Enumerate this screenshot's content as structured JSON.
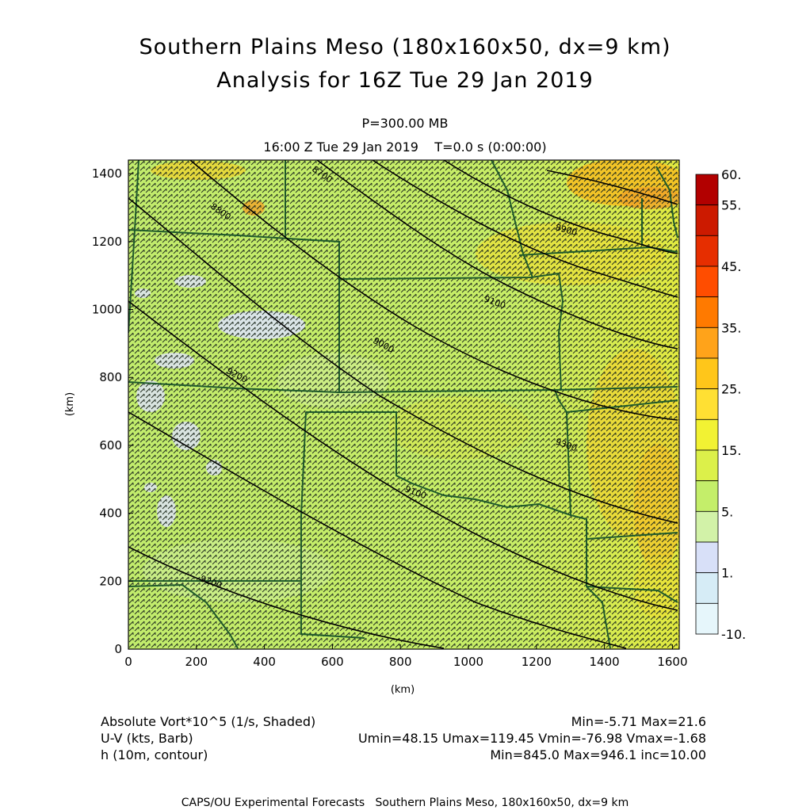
{
  "header": {
    "title_line1": "Southern Plains Meso (180x160x50, dx=9 km)",
    "title_line2": "Analysis for 16Z Tue 29 Jan 2019",
    "level": "P=300.00 MB",
    "valid_time": "16:00 Z Tue 29 Jan 2019    T=0.0 s (0:00:00)"
  },
  "axes": {
    "x_label": "(km)",
    "y_label": "(km)",
    "x_ticks": [
      "0",
      "200",
      "400",
      "600",
      "800",
      "1000",
      "1200",
      "1400",
      "1600"
    ],
    "y_ticks": [
      "0",
      "200",
      "400",
      "600",
      "800",
      "1000",
      "1200",
      "1400"
    ],
    "x_range": [
      0,
      1620
    ],
    "y_range": [
      0,
      1440
    ]
  },
  "colorbar": {
    "labels": [
      "60.",
      "55.",
      "45.",
      "35.",
      "25.",
      "15.",
      "5.",
      "1.",
      "-10."
    ],
    "colors": [
      "#b20000",
      "#cc1a00",
      "#e62e00",
      "#ff4d00",
      "#ff7a00",
      "#ffa31a",
      "#ffc61a",
      "#ffe033",
      "#f2f233",
      "#dcf04a",
      "#c4ee6a",
      "#d2f2a8",
      "#d8e0f8",
      "#d6ecf6",
      "#e6f6fb"
    ]
  },
  "contours": {
    "labels": [
      "9200",
      "9100",
      "9300",
      "9200",
      "9000",
      "9100",
      "8900",
      "8800",
      "8700",
      "8600",
      "8600"
    ]
  },
  "legend": {
    "shaded_name": "Absolute Vort*10^5 (1/s, Shaded)",
    "shaded_stats": "Min=-5.71 Max=21.6",
    "barb_name": "U-V (kts, Barb)",
    "barb_stats": "Umin=48.15 Umax=119.45 Vmin=-76.98 Vmax=-1.68",
    "contour_name": "h (10m, contour)",
    "contour_stats": "Min=845.0 Max=946.1 inc=10.00"
  },
  "footer": "CAPS/OU Experimental Forecasts   Southern Plains Meso, 180x160x50, dx=9 km"
}
